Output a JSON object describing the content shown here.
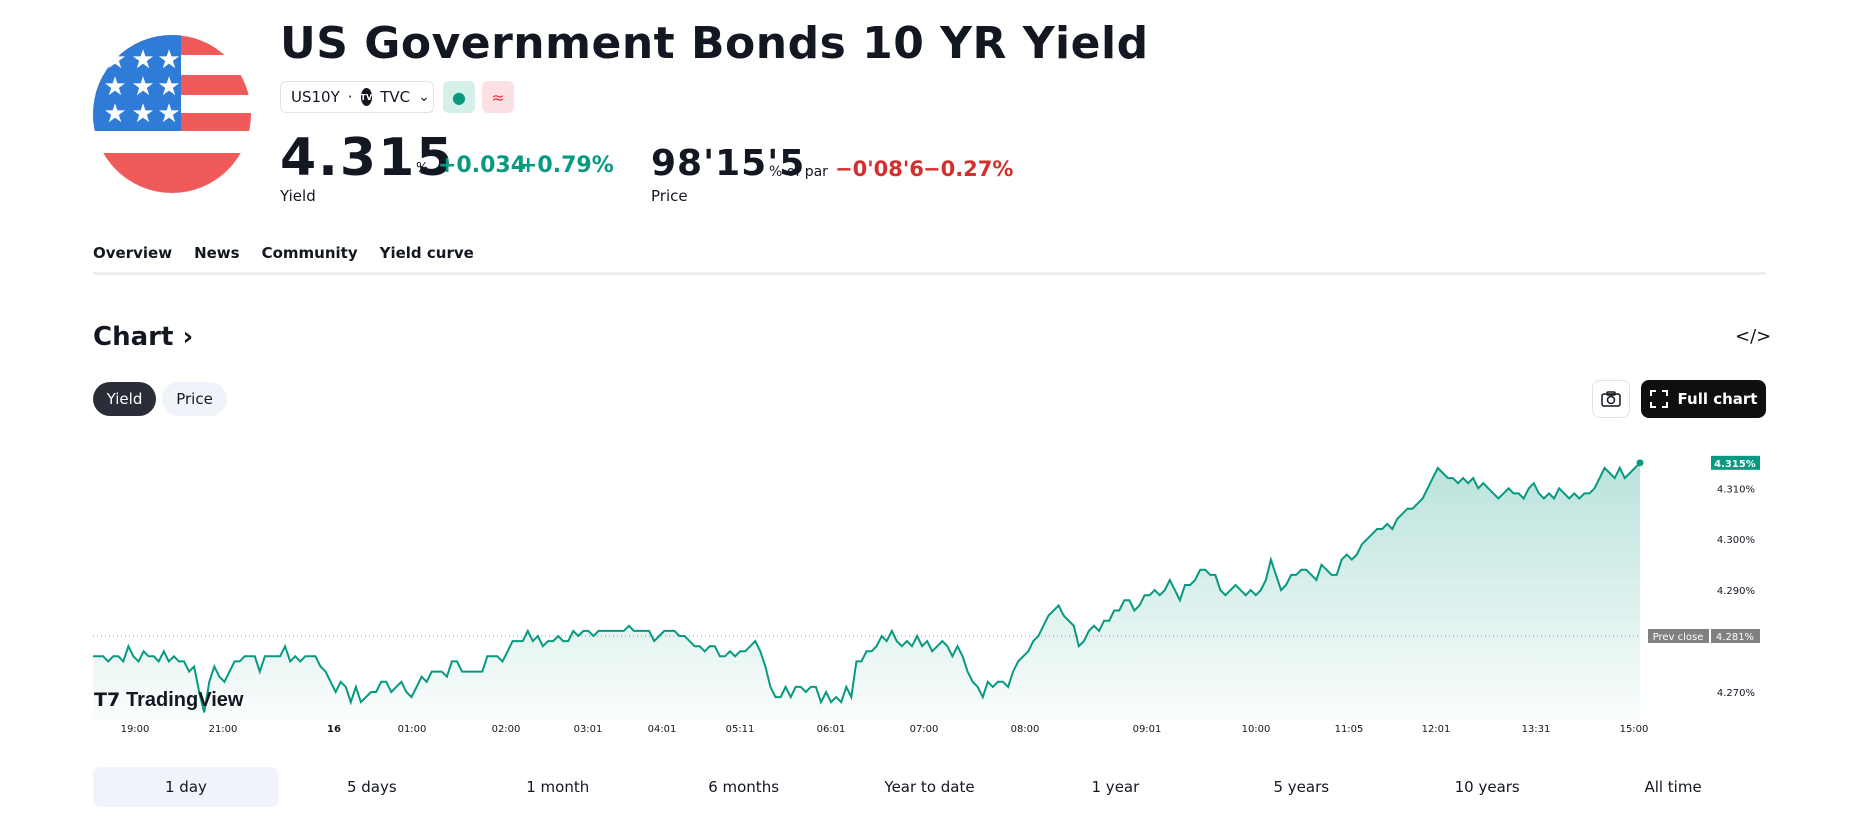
{
  "header": {
    "title": "US Government Bonds 10 YR Yield",
    "symbol": "US10Y",
    "exchange": "TVC",
    "exchange_logo": "TV",
    "market_status_icon": "dot-icon",
    "delayed_icon": "approx-icon"
  },
  "yield_quote": {
    "value": "4.315",
    "unit": "%",
    "change": "+0.034",
    "change_pct": "+0.79%",
    "label": "Yield"
  },
  "price_quote": {
    "value": "98'15'5",
    "unit": "% of par",
    "change": "−0'08'6",
    "change_pct": "−0.27%",
    "label": "Price"
  },
  "tabs": [
    {
      "label": "Overview",
      "active": true
    },
    {
      "label": "News",
      "active": false
    },
    {
      "label": "Community",
      "active": false
    },
    {
      "label": "Yield curve",
      "active": false
    }
  ],
  "chart_section": {
    "heading": "Chart",
    "embed_icon": "</>",
    "toggle": [
      {
        "label": "Yield",
        "active": true
      },
      {
        "label": "Price",
        "active": false
      }
    ],
    "full_chart_label": "Full chart",
    "watermark": "TradingView"
  },
  "chart_data": {
    "type": "area",
    "title": "",
    "x_ticks": [
      "19:00",
      "21:00",
      "16",
      "01:00",
      "02:00",
      "03:01",
      "04:01",
      "05:11",
      "06:01",
      "07:00",
      "08:00",
      "09:01",
      "10:00",
      "11:05",
      "12:01",
      "13:31",
      "15:00"
    ],
    "y_ticks": [
      "4.310%",
      "4.300%",
      "4.290%",
      "4.270%"
    ],
    "ylim": [
      4.2645,
      4.3185
    ],
    "last_value": 4.315,
    "last_label": "4.315%",
    "prev_close": 4.281,
    "prev_close_label": "Prev close",
    "prev_close_value_label": "4.281%",
    "line_color": "#089981",
    "series": [
      {
        "values": [
          4.277,
          4.277,
          4.277,
          4.276,
          4.277,
          4.277,
          4.276,
          4.279,
          4.277,
          4.276,
          4.278,
          4.277,
          4.277,
          4.276,
          4.278,
          4.276,
          4.277,
          4.276,
          4.276,
          4.274,
          4.275,
          4.27,
          4.266,
          4.272,
          4.275,
          4.273,
          4.272,
          4.274,
          4.276,
          4.276,
          4.277,
          4.277,
          4.277,
          4.274,
          4.277,
          4.277,
          4.277,
          4.277,
          4.279,
          4.276,
          4.277,
          4.276,
          4.277,
          4.277,
          4.277,
          4.275,
          4.274,
          4.272,
          4.27,
          4.272,
          4.271,
          4.268,
          4.271,
          4.268,
          4.269,
          4.27,
          4.27,
          4.272,
          4.272,
          4.27,
          4.271,
          4.272,
          4.27,
          4.269,
          4.271,
          4.273,
          4.272,
          4.274,
          4.274,
          4.274,
          4.273,
          4.276,
          4.276,
          4.274,
          4.274,
          4.274,
          4.274,
          4.274,
          4.277,
          4.277,
          4.277,
          4.276,
          4.278,
          4.28,
          4.28,
          4.28,
          4.282,
          4.28,
          4.281,
          4.279,
          4.28,
          4.28,
          4.281,
          4.28,
          4.28,
          4.282,
          4.281,
          4.282,
          4.282,
          4.281,
          4.282,
          4.282,
          4.282,
          4.282,
          4.282,
          4.282,
          4.283,
          4.282,
          4.282,
          4.282,
          4.282,
          4.28,
          4.281,
          4.282,
          4.282,
          4.282,
          4.281,
          4.281,
          4.28,
          4.279,
          4.279,
          4.278,
          4.279,
          4.279,
          4.277,
          4.277,
          4.278,
          4.277,
          4.278,
          4.278,
          4.279,
          4.28,
          4.278,
          4.275,
          4.271,
          4.269,
          4.269,
          4.271,
          4.269,
          4.271,
          4.271,
          4.27,
          4.271,
          4.271,
          4.268,
          4.27,
          4.268,
          4.269,
          4.268,
          4.271,
          4.269,
          4.276,
          4.276,
          4.278,
          4.278,
          4.279,
          4.281,
          4.28,
          4.282,
          4.28,
          4.279,
          4.28,
          4.279,
          4.281,
          4.279,
          4.28,
          4.278,
          4.279,
          4.28,
          4.279,
          4.277,
          4.279,
          4.277,
          4.274,
          4.272,
          4.271,
          4.269,
          4.272,
          4.271,
          4.272,
          4.272,
          4.271,
          4.274,
          4.276,
          4.277,
          4.278,
          4.28,
          4.281,
          4.283,
          4.285,
          4.286,
          4.287,
          4.285,
          4.284,
          4.283,
          4.279,
          4.28,
          4.282,
          4.283,
          4.282,
          4.284,
          4.284,
          4.286,
          4.286,
          4.288,
          4.288,
          4.286,
          4.287,
          4.289,
          4.289,
          4.29,
          4.289,
          4.29,
          4.292,
          4.29,
          4.288,
          4.291,
          4.291,
          4.292,
          4.294,
          4.294,
          4.293,
          4.293,
          4.29,
          4.289,
          4.29,
          4.291,
          4.29,
          4.289,
          4.29,
          4.289,
          4.29,
          4.292,
          4.296,
          4.293,
          4.29,
          4.291,
          4.293,
          4.293,
          4.294,
          4.294,
          4.293,
          4.292,
          4.295,
          4.294,
          4.293,
          4.293,
          4.296,
          4.297,
          4.296,
          4.297,
          4.299,
          4.3,
          4.301,
          4.302,
          4.302,
          4.303,
          4.302,
          4.304,
          4.305,
          4.306,
          4.306,
          4.307,
          4.308,
          4.31,
          4.312,
          4.314,
          4.313,
          4.312,
          4.312,
          4.311,
          4.312,
          4.311,
          4.312,
          4.31,
          4.311,
          4.31,
          4.309,
          4.308,
          4.309,
          4.31,
          4.309,
          4.309,
          4.308,
          4.31,
          4.311,
          4.309,
          4.308,
          4.309,
          4.308,
          4.31,
          4.309,
          4.308,
          4.309,
          4.308,
          4.309,
          4.309,
          4.31,
          4.312,
          4.314,
          4.313,
          4.312,
          4.314,
          4.312,
          4.313,
          4.314,
          4.315
        ]
      }
    ]
  }
}
